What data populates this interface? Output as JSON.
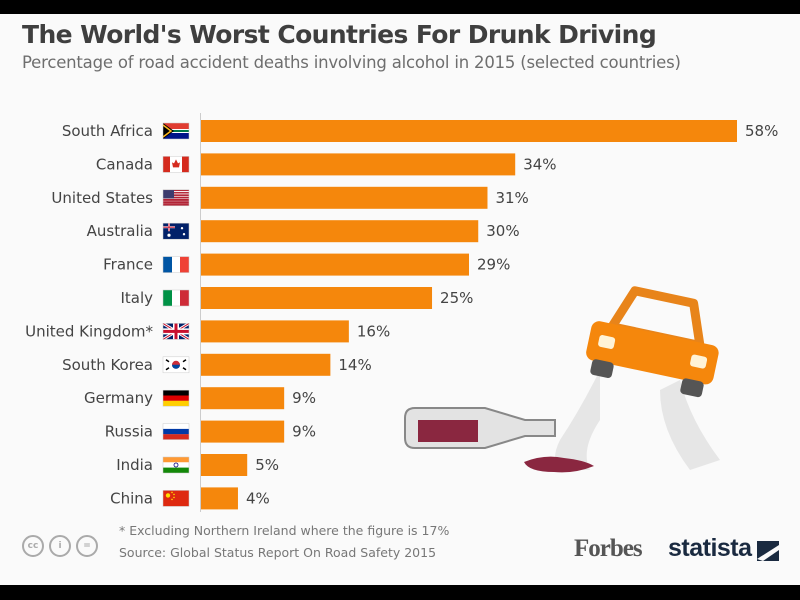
{
  "title": "The World's Worst Countries For Drunk Driving",
  "subtitle": "Percentage of road accident deaths involving alcohol in 2015 (selected countries)",
  "chart_data": {
    "type": "bar",
    "orientation": "horizontal",
    "categories": [
      "South Africa",
      "Canada",
      "United States",
      "Australia",
      "France",
      "Italy",
      "United Kingdom*",
      "South Korea",
      "Germany",
      "Russia",
      "India",
      "China"
    ],
    "values": [
      58,
      34,
      31,
      30,
      29,
      25,
      16,
      14,
      9,
      9,
      5,
      4
    ],
    "value_labels": [
      "58%",
      "34%",
      "31%",
      "30%",
      "29%",
      "25%",
      "16%",
      "14%",
      "9%",
      "9%",
      "5%",
      "4%"
    ],
    "unit": "%",
    "xlim": [
      0,
      58
    ],
    "grid": false,
    "bar_color": "#f5870c",
    "title": "The World's Worst Countries For Drunk Driving",
    "xlabel": "",
    "ylabel": ""
  },
  "flags": [
    "south-africa-flag",
    "canada-flag",
    "united-states-flag",
    "australia-flag",
    "france-flag",
    "italy-flag",
    "united-kingdom-flag",
    "south-korea-flag",
    "germany-flag",
    "russia-flag",
    "india-flag",
    "china-flag"
  ],
  "footer": {
    "note": "* Excluding Northern Ireland where the figure is 17%",
    "source": "Source: Global Status Report On Road Safety 2015",
    "license_icons": [
      "cc",
      "by",
      "nd"
    ],
    "forbes": "Forbes",
    "statista": "statista"
  }
}
